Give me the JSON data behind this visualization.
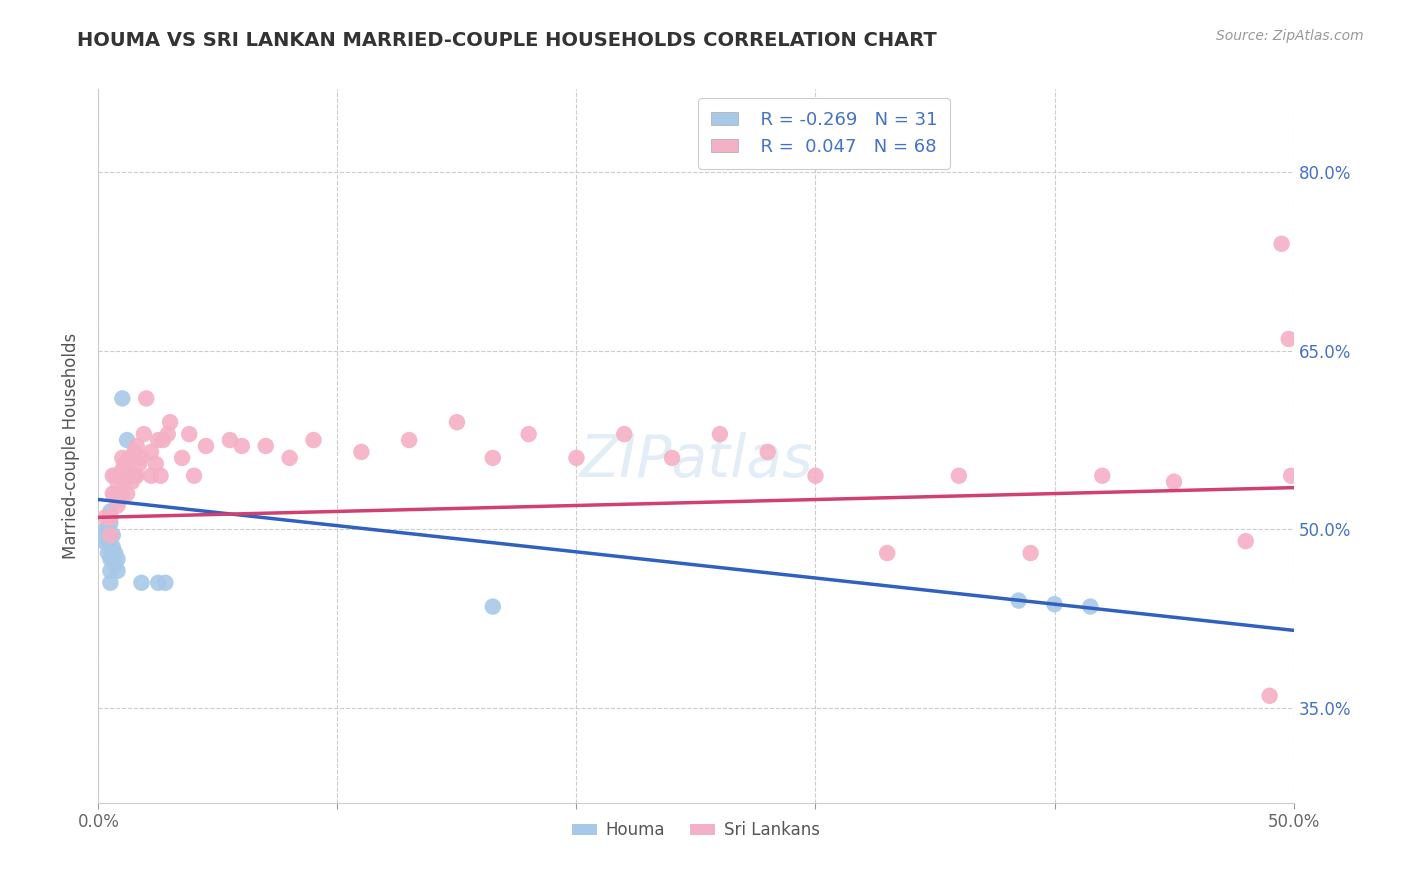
{
  "title": "HOUMA VS SRI LANKAN MARRIED-COUPLE HOUSEHOLDS CORRELATION CHART",
  "source": "Source: ZipAtlas.com",
  "ylabel": "Married-couple Households",
  "xlim": [
    0.0,
    0.5
  ],
  "ylim": [
    0.27,
    0.87
  ],
  "xticks": [
    0.0,
    0.1,
    0.2,
    0.3,
    0.4,
    0.5
  ],
  "xtick_labels": [
    "0.0%",
    "",
    "",
    "",
    "",
    "50.0%"
  ],
  "yticks": [
    0.35,
    0.5,
    0.65,
    0.8
  ],
  "ytick_labels": [
    "35.0%",
    "50.0%",
    "65.0%",
    "80.0%"
  ],
  "R_houma": -0.269,
  "N_houma": 31,
  "R_sri": 0.047,
  "N_sri": 68,
  "houma_color": "#a8c8e8",
  "sri_color": "#f4b0c4",
  "houma_line_color": "#3060c0",
  "sri_line_color": "#d04070",
  "watermark": "ZIPatlas",
  "title_fontsize": 14,
  "label_fontsize": 12,
  "tick_fontsize": 12,
  "houma_x": [
    0.002,
    0.003,
    0.004,
    0.004,
    0.004,
    0.005,
    0.005,
    0.005,
    0.005,
    0.005,
    0.005,
    0.005,
    0.005,
    0.006,
    0.006,
    0.006,
    0.007,
    0.007,
    0.008,
    0.008,
    0.01,
    0.012,
    0.013,
    0.015,
    0.018,
    0.025,
    0.028,
    0.165,
    0.385,
    0.4,
    0.415
  ],
  "houma_y": [
    0.49,
    0.5,
    0.48,
    0.49,
    0.5,
    0.455,
    0.465,
    0.475,
    0.485,
    0.495,
    0.505,
    0.51,
    0.515,
    0.475,
    0.485,
    0.495,
    0.47,
    0.48,
    0.465,
    0.475,
    0.61,
    0.575,
    0.545,
    0.545,
    0.455,
    0.455,
    0.455,
    0.435,
    0.44,
    0.437,
    0.435
  ],
  "sri_x": [
    0.003,
    0.005,
    0.005,
    0.006,
    0.006,
    0.007,
    0.007,
    0.008,
    0.008,
    0.009,
    0.009,
    0.01,
    0.01,
    0.01,
    0.011,
    0.011,
    0.012,
    0.012,
    0.013,
    0.013,
    0.014,
    0.014,
    0.015,
    0.015,
    0.016,
    0.016,
    0.017,
    0.018,
    0.019,
    0.02,
    0.022,
    0.022,
    0.024,
    0.025,
    0.026,
    0.027,
    0.029,
    0.03,
    0.035,
    0.038,
    0.04,
    0.045,
    0.055,
    0.06,
    0.07,
    0.08,
    0.09,
    0.11,
    0.13,
    0.15,
    0.165,
    0.18,
    0.2,
    0.22,
    0.24,
    0.26,
    0.28,
    0.3,
    0.33,
    0.36,
    0.39,
    0.42,
    0.45,
    0.48,
    0.49,
    0.495,
    0.498,
    0.499
  ],
  "sri_y": [
    0.51,
    0.495,
    0.51,
    0.53,
    0.545,
    0.53,
    0.545,
    0.52,
    0.54,
    0.525,
    0.545,
    0.53,
    0.55,
    0.56,
    0.54,
    0.555,
    0.53,
    0.55,
    0.545,
    0.56,
    0.54,
    0.56,
    0.545,
    0.565,
    0.545,
    0.57,
    0.555,
    0.56,
    0.58,
    0.61,
    0.545,
    0.565,
    0.555,
    0.575,
    0.545,
    0.575,
    0.58,
    0.59,
    0.56,
    0.58,
    0.545,
    0.57,
    0.575,
    0.57,
    0.57,
    0.56,
    0.575,
    0.565,
    0.575,
    0.59,
    0.56,
    0.58,
    0.56,
    0.58,
    0.56,
    0.58,
    0.565,
    0.545,
    0.48,
    0.545,
    0.48,
    0.545,
    0.54,
    0.49,
    0.36,
    0.74,
    0.66,
    0.545
  ],
  "houma_line_x0": 0.0,
  "houma_line_y0": 0.525,
  "houma_line_x1": 0.5,
  "houma_line_y1": 0.415,
  "sri_line_x0": 0.0,
  "sri_line_y0": 0.51,
  "sri_line_x1": 0.5,
  "sri_line_y1": 0.535
}
